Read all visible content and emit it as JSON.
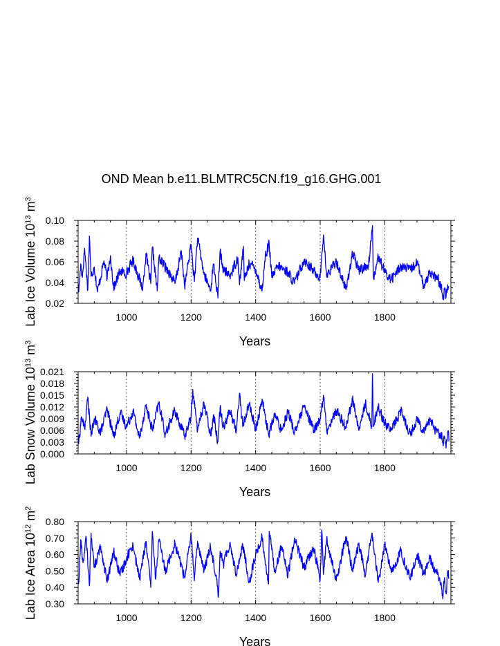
{
  "figure": {
    "title": "OND Mean b.e11.BLMTRC5CN.f19_g16.GHG.001"
  },
  "chart_data": [
    {
      "type": "line",
      "xlabel": "Years",
      "ylabel": "Lab Ice Volume 10",
      "ylabel_sup": "13",
      "ylabel_unit": " m",
      "ylabel_unit_sup": "3",
      "xlim": [
        850,
        2005
      ],
      "ylim": [
        0.02,
        0.1
      ],
      "xticks": [
        1000,
        1200,
        1400,
        1600,
        1800
      ],
      "xtick_labels": [
        "1000",
        "1200",
        "1400",
        "1600",
        "1800"
      ],
      "yticks": [
        0.02,
        0.04,
        0.06,
        0.08,
        0.1
      ],
      "ytick_labels": [
        "0.02",
        "0.04",
        "0.06",
        "0.08",
        "0.10"
      ],
      "xgrid_dashed": true,
      "series": {
        "name": "Lab Ice Volume",
        "color": "#0000ff",
        "anchor_years": [
          850,
          852,
          858,
          863,
          870,
          880,
          885,
          890,
          900,
          910,
          930,
          940,
          950,
          960,
          980,
          1000,
          1020,
          1050,
          1060,
          1075,
          1080,
          1095,
          1100,
          1130,
          1150,
          1170,
          1180,
          1200,
          1210,
          1220,
          1240,
          1260,
          1270,
          1283,
          1285,
          1290,
          1300,
          1320,
          1345,
          1350,
          1362,
          1365,
          1380,
          1400,
          1420,
          1430,
          1442,
          1450,
          1470,
          1500,
          1520,
          1550,
          1580,
          1600,
          1610,
          1620,
          1650,
          1680,
          1700,
          1720,
          1750,
          1762,
          1765,
          1780,
          1800,
          1820,
          1850,
          1880,
          1900,
          1920,
          1940,
          1950,
          1960,
          1965,
          1970,
          1975,
          1980,
          1985,
          1990,
          1995,
          2000
        ],
        "anchor_values": [
          0.038,
          0.031,
          0.058,
          0.045,
          0.073,
          0.033,
          0.085,
          0.046,
          0.055,
          0.031,
          0.061,
          0.044,
          0.066,
          0.035,
          0.051,
          0.049,
          0.062,
          0.034,
          0.068,
          0.039,
          0.074,
          0.032,
          0.064,
          0.051,
          0.039,
          0.07,
          0.036,
          0.077,
          0.041,
          0.083,
          0.048,
          0.033,
          0.058,
          0.025,
          0.042,
          0.07,
          0.052,
          0.046,
          0.064,
          0.038,
          0.075,
          0.042,
          0.059,
          0.053,
          0.032,
          0.066,
          0.077,
          0.045,
          0.056,
          0.05,
          0.039,
          0.062,
          0.051,
          0.045,
          0.086,
          0.046,
          0.061,
          0.033,
          0.068,
          0.052,
          0.057,
          0.095,
          0.044,
          0.065,
          0.05,
          0.043,
          0.056,
          0.052,
          0.06,
          0.036,
          0.051,
          0.047,
          0.043,
          0.045,
          0.036,
          0.037,
          0.024,
          0.033,
          0.026,
          0.038,
          0.033
        ]
      }
    },
    {
      "type": "line",
      "xlabel": "Years",
      "ylabel": "Lab Snow Volume 10",
      "ylabel_sup": "13",
      "ylabel_unit": " m",
      "ylabel_unit_sup": "3",
      "xlim": [
        850,
        2005
      ],
      "ylim": [
        0.0,
        0.021
      ],
      "xticks": [
        1000,
        1200,
        1400,
        1600,
        1800
      ],
      "xtick_labels": [
        "1000",
        "1200",
        "1400",
        "1600",
        "1800"
      ],
      "yticks": [
        0.0,
        0.003,
        0.006,
        0.009,
        0.012,
        0.015,
        0.018,
        0.021
      ],
      "ytick_labels": [
        "0.000",
        "0.003",
        "0.006",
        "0.009",
        "0.012",
        "0.015",
        "0.018",
        "0.021"
      ],
      "xgrid_dashed": true,
      "series": {
        "name": "Lab Snow Volume",
        "color": "#0000ff",
        "anchor_years": [
          850,
          852,
          860,
          870,
          880,
          890,
          900,
          920,
          940,
          960,
          980,
          1000,
          1020,
          1040,
          1060,
          1080,
          1100,
          1120,
          1150,
          1180,
          1200,
          1205,
          1220,
          1240,
          1260,
          1270,
          1283,
          1290,
          1300,
          1320,
          1340,
          1350,
          1360,
          1380,
          1400,
          1420,
          1440,
          1460,
          1480,
          1500,
          1520,
          1550,
          1580,
          1600,
          1610,
          1620,
          1650,
          1680,
          1700,
          1720,
          1740,
          1760,
          1762,
          1765,
          1780,
          1800,
          1820,
          1850,
          1880,
          1900,
          1920,
          1940,
          1950,
          1960,
          1970,
          1975,
          1980,
          1985,
          1990,
          1995,
          2000
        ],
        "anchor_values": [
          0.0035,
          0.0028,
          0.0095,
          0.0065,
          0.0145,
          0.0045,
          0.009,
          0.0055,
          0.0115,
          0.0045,
          0.0105,
          0.007,
          0.011,
          0.004,
          0.0125,
          0.006,
          0.013,
          0.005,
          0.011,
          0.0045,
          0.0095,
          0.0165,
          0.006,
          0.013,
          0.005,
          0.01,
          0.003,
          0.012,
          0.007,
          0.011,
          0.006,
          0.0155,
          0.007,
          0.013,
          0.006,
          0.014,
          0.005,
          0.01,
          0.006,
          0.011,
          0.0055,
          0.012,
          0.006,
          0.009,
          0.015,
          0.006,
          0.011,
          0.007,
          0.014,
          0.006,
          0.013,
          0.007,
          0.0205,
          0.007,
          0.012,
          0.008,
          0.006,
          0.011,
          0.005,
          0.009,
          0.006,
          0.009,
          0.007,
          0.006,
          0.005,
          0.0055,
          0.003,
          0.004,
          0.0015,
          0.0055,
          0.0035
        ]
      }
    },
    {
      "type": "line",
      "xlabel": "Years",
      "ylabel": "Lab Ice Area 10",
      "ylabel_sup": "12",
      "ylabel_unit": " m",
      "ylabel_unit_sup": "2",
      "xlim": [
        850,
        2005
      ],
      "ylim": [
        0.3,
        0.8
      ],
      "xticks": [
        1000,
        1200,
        1400,
        1600,
        1800
      ],
      "xtick_labels": [
        "1000",
        "1200",
        "1400",
        "1600",
        "1800"
      ],
      "yticks": [
        0.3,
        0.4,
        0.5,
        0.6,
        0.7,
        0.8
      ],
      "ytick_labels": [
        "0.30",
        "0.40",
        "0.50",
        "0.60",
        "0.70",
        "0.80"
      ],
      "xgrid_dashed": true,
      "series": {
        "name": "Lab Ice Area",
        "color": "#0000ff",
        "anchor_years": [
          850,
          852,
          858,
          865,
          875,
          885,
          890,
          900,
          920,
          940,
          960,
          980,
          1000,
          1020,
          1040,
          1060,
          1075,
          1080,
          1090,
          1100,
          1120,
          1150,
          1180,
          1200,
          1210,
          1220,
          1240,
          1260,
          1280,
          1285,
          1290,
          1300,
          1320,
          1340,
          1360,
          1380,
          1400,
          1420,
          1440,
          1442,
          1460,
          1480,
          1500,
          1520,
          1550,
          1580,
          1600,
          1605,
          1610,
          1620,
          1650,
          1680,
          1700,
          1720,
          1740,
          1760,
          1780,
          1800,
          1820,
          1850,
          1880,
          1900,
          1920,
          1940,
          1950,
          1960,
          1970,
          1975,
          1980,
          1985,
          1990,
          1995,
          2000
        ],
        "anchor_values": [
          0.44,
          0.43,
          0.69,
          0.55,
          0.7,
          0.41,
          0.73,
          0.52,
          0.65,
          0.43,
          0.62,
          0.47,
          0.58,
          0.66,
          0.45,
          0.68,
          0.4,
          0.74,
          0.45,
          0.69,
          0.5,
          0.67,
          0.46,
          0.72,
          0.44,
          0.68,
          0.5,
          0.65,
          0.45,
          0.35,
          0.62,
          0.54,
          0.67,
          0.48,
          0.66,
          0.43,
          0.6,
          0.7,
          0.42,
          0.74,
          0.5,
          0.65,
          0.47,
          0.7,
          0.52,
          0.64,
          0.45,
          0.75,
          0.48,
          0.69,
          0.44,
          0.71,
          0.5,
          0.67,
          0.47,
          0.73,
          0.43,
          0.66,
          0.49,
          0.62,
          0.45,
          0.6,
          0.48,
          0.58,
          0.52,
          0.49,
          0.46,
          0.43,
          0.33,
          0.46,
          0.36,
          0.5,
          0.44
        ]
      }
    }
  ]
}
